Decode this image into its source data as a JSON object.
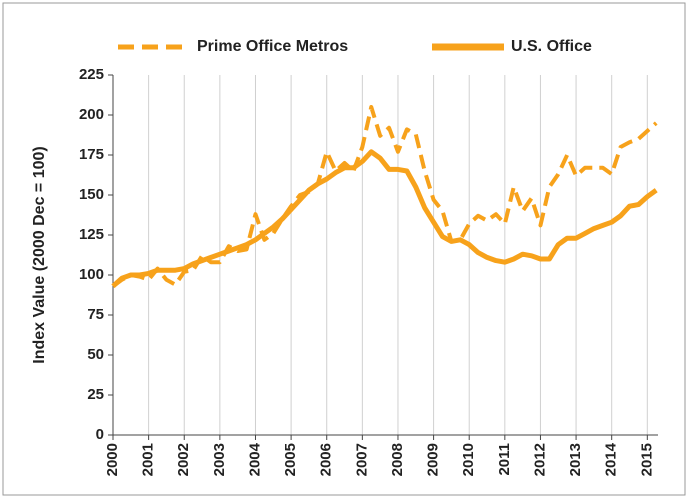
{
  "chart_data": {
    "type": "line",
    "y_label": "Index Value (2000 Dec = 100)",
    "x": [
      2000,
      2000.25,
      2000.5,
      2000.75,
      2001,
      2001.25,
      2001.5,
      2001.75,
      2002,
      2002.25,
      2002.5,
      2002.75,
      2003,
      2003.25,
      2003.5,
      2003.75,
      2004,
      2004.25,
      2004.5,
      2004.75,
      2005,
      2005.25,
      2005.5,
      2005.75,
      2006,
      2006.25,
      2006.5,
      2006.75,
      2007,
      2007.25,
      2007.5,
      2007.75,
      2008,
      2008.25,
      2008.5,
      2008.75,
      2009,
      2009.25,
      2009.5,
      2009.75,
      2010,
      2010.25,
      2010.5,
      2010.75,
      2011,
      2011.25,
      2011.5,
      2011.75,
      2012,
      2012.25,
      2012.5,
      2012.75,
      2013,
      2013.25,
      2013.5,
      2013.75,
      2014,
      2014.25,
      2014.5,
      2014.75,
      2015,
      2015.25
    ],
    "series": [
      {
        "name": "Prime Office Metros",
        "color": "#f7a21b",
        "dash": true,
        "values": [
          93,
          97,
          100,
          99,
          97,
          104,
          97,
          94,
          102,
          103,
          112,
          108,
          108,
          118,
          115,
          116,
          138,
          122,
          126,
          135,
          143,
          150,
          152,
          157,
          177,
          165,
          170,
          165,
          180,
          205,
          187,
          192,
          177,
          191,
          188,
          165,
          147,
          140,
          121,
          122,
          132,
          137,
          134,
          138,
          132,
          155,
          140,
          148,
          131,
          155,
          163,
          175,
          162,
          167,
          167,
          167,
          163,
          180,
          183,
          185,
          190,
          195
        ]
      },
      {
        "name": "U.S. Office",
        "color": "#f7a21b",
        "dash": false,
        "values": [
          93,
          98,
          100,
          100,
          101,
          103,
          103,
          103,
          104,
          107,
          109,
          111,
          113,
          115,
          117,
          119,
          122,
          126,
          130,
          135,
          141,
          147,
          153,
          157,
          160,
          164,
          167,
          167,
          171,
          177,
          173,
          166,
          166,
          165,
          155,
          142,
          133,
          124,
          121,
          122,
          119,
          114,
          111,
          109,
          108,
          110,
          113,
          112,
          110,
          110,
          119,
          123,
          123,
          126,
          129,
          131,
          133,
          137,
          143,
          144,
          149,
          153
        ]
      }
    ],
    "xlim": [
      2000,
      2015.3
    ],
    "xticks": [
      2000,
      2001,
      2002,
      2003,
      2004,
      2005,
      2006,
      2007,
      2008,
      2009,
      2010,
      2011,
      2012,
      2013,
      2014,
      2015
    ],
    "ylim": [
      0,
      225
    ],
    "yticks": [
      0,
      25,
      50,
      75,
      100,
      125,
      150,
      175,
      200,
      225
    ],
    "grid": "x",
    "legend": "top"
  }
}
